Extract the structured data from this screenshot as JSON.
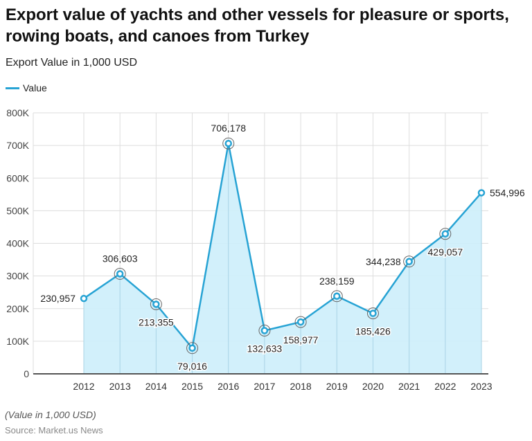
{
  "title": "Export value of yachts and other vessels for pleasure or sports, rowing boats, and canoes from Turkey",
  "subtitle": "Export Value in 1,000 USD",
  "note": "(Value in 1,000 USD)",
  "source": "Source: Market.us News",
  "colors": {
    "line": "#27a3d4",
    "area": "#cdeefb",
    "grid": "#dddddd"
  },
  "chart_data": {
    "type": "area",
    "title": "Export value of yachts and other vessels for pleasure or sports, rowing boats, and canoes from Turkey",
    "ylabel": "Export Value in 1,000 USD",
    "legend": {
      "position": "top-left",
      "entries": [
        "Value"
      ]
    },
    "categories": [
      "2012",
      "2013",
      "2014",
      "2015",
      "2016",
      "2017",
      "2018",
      "2019",
      "2020",
      "2021",
      "2022",
      "2023"
    ],
    "series": [
      {
        "name": "Value",
        "values": [
          230957,
          306603,
          213355,
          79016,
          706178,
          132633,
          158977,
          238159,
          185426,
          344238,
          429057,
          554996
        ]
      }
    ],
    "data_labels": [
      "230,957",
      "306,603",
      "213,355",
      "79,016",
      "706,178",
      "132,633",
      "158,977",
      "238,159",
      "185,426",
      "344,238",
      "429,057",
      "554,996"
    ],
    "ylim": [
      0,
      800000
    ],
    "yticks": [
      0,
      100000,
      200000,
      300000,
      400000,
      500000,
      600000,
      700000,
      800000
    ],
    "ytick_labels": [
      "0",
      "100K",
      "200K",
      "300K",
      "400K",
      "500K",
      "600K",
      "700K",
      "800K"
    ],
    "grid": true
  }
}
